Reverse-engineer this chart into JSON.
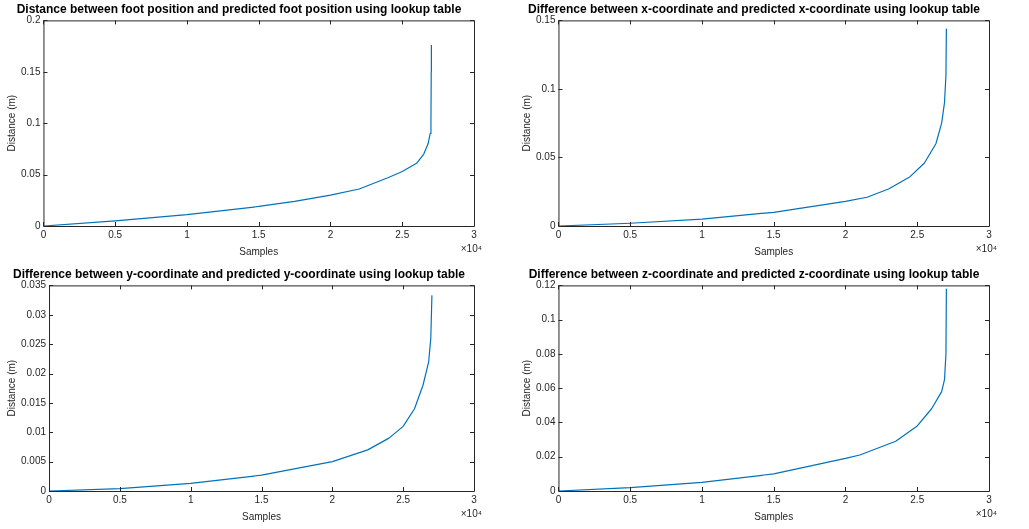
{
  "chart_data": [
    {
      "type": "line",
      "title": "Distance between foot position and predicted foot position using lookup table",
      "xlabel": "Samples",
      "ylabel": "Distance (m)",
      "annotations": [
        "×10⁴"
      ],
      "grid": false,
      "legend": false,
      "marker": "none",
      "line_style": "solid",
      "xlim": [
        0,
        3
      ],
      "xticks": [
        0,
        0.5,
        1,
        1.5,
        2,
        2.5,
        3
      ],
      "ylim": [
        0,
        0.2
      ],
      "yticks": [
        0,
        0.05,
        0.1,
        0.15,
        0.2
      ],
      "series": [
        {
          "color": "#0072bd",
          "x": [
            0,
            0.5,
            1,
            1.5,
            1.75,
            2,
            2.2,
            2.4,
            2.5,
            2.6,
            2.65,
            2.68,
            2.695,
            2.7,
            2.702,
            2.703
          ],
          "values": [
            0,
            0.005,
            0.011,
            0.019,
            0.024,
            0.03,
            0.036,
            0.047,
            0.053,
            0.061,
            0.07,
            0.08,
            0.09,
            0.1,
            0.15,
            0.176
          ]
        }
      ]
    },
    {
      "type": "line",
      "title": "Difference between x-coordinate and predicted x-coordinate using lookup table",
      "xlabel": "Samples",
      "ylabel": "Distance (m)",
      "annotations": [
        "×10⁴"
      ],
      "grid": false,
      "legend": false,
      "marker": "none",
      "line_style": "solid",
      "xlim": [
        0,
        3
      ],
      "xticks": [
        0,
        0.5,
        1,
        1.5,
        2,
        2.5,
        3
      ],
      "ylim": [
        0,
        0.15
      ],
      "yticks": [
        0,
        0.05,
        0.1,
        0.15
      ],
      "series": [
        {
          "color": "#0072bd",
          "x": [
            0,
            0.5,
            1,
            1.5,
            2,
            2.15,
            2.3,
            2.45,
            2.55,
            2.63,
            2.67,
            2.69,
            2.7,
            2.703
          ],
          "values": [
            0,
            0.002,
            0.005,
            0.01,
            0.018,
            0.021,
            0.027,
            0.036,
            0.046,
            0.06,
            0.075,
            0.09,
            0.11,
            0.144
          ]
        }
      ]
    },
    {
      "type": "line",
      "title": "Difference between y-coordinate and predicted y-coordinate using lookup table",
      "xlabel": "Samples",
      "ylabel": "Distance (m)",
      "annotations": [
        "×10⁴"
      ],
      "grid": false,
      "legend": false,
      "marker": "none",
      "line_style": "solid",
      "xlim": [
        0,
        3
      ],
      "xticks": [
        0,
        0.5,
        1,
        1.5,
        2,
        2.5,
        3
      ],
      "ylim": [
        0,
        0.035
      ],
      "yticks": [
        0,
        0.005,
        0.01,
        0.015,
        0.02,
        0.025,
        0.03,
        0.035
      ],
      "series": [
        {
          "color": "#0072bd",
          "x": [
            0,
            0.5,
            1,
            1.5,
            2,
            2.25,
            2.4,
            2.5,
            2.58,
            2.64,
            2.68,
            2.695,
            2.703
          ],
          "values": [
            0,
            0.0004,
            0.0013,
            0.0027,
            0.005,
            0.007,
            0.009,
            0.011,
            0.014,
            0.018,
            0.022,
            0.026,
            0.0333
          ]
        }
      ]
    },
    {
      "type": "line",
      "title": "Difference between z-coordinate and predicted z-coordinate using lookup table",
      "xlabel": "Samples",
      "ylabel": "Distance (m)",
      "annotations": [
        "×10⁴"
      ],
      "grid": false,
      "legend": false,
      "marker": "none",
      "line_style": "solid",
      "xlim": [
        0,
        3
      ],
      "xticks": [
        0,
        0.5,
        1,
        1.5,
        2,
        2.5,
        3
      ],
      "ylim": [
        0,
        0.12
      ],
      "yticks": [
        0,
        0.02,
        0.04,
        0.06,
        0.08,
        0.1,
        0.12
      ],
      "series": [
        {
          "color": "#0072bd",
          "x": [
            0,
            0.5,
            1,
            1.5,
            2,
            2.1,
            2.35,
            2.5,
            2.6,
            2.67,
            2.69,
            2.7,
            2.703
          ],
          "values": [
            0,
            0.002,
            0.005,
            0.01,
            0.019,
            0.021,
            0.029,
            0.038,
            0.048,
            0.058,
            0.065,
            0.08,
            0.118
          ]
        }
      ]
    }
  ]
}
